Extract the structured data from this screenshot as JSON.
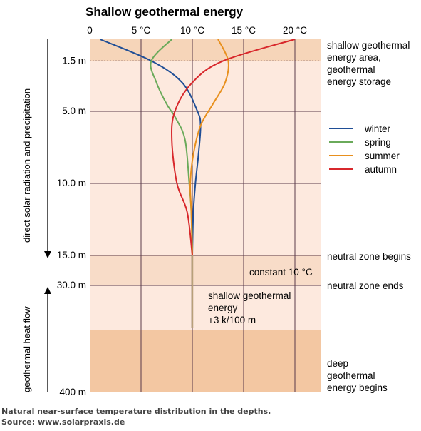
{
  "chart_data": {
    "type": "line",
    "title": "Shallow geothermal energy",
    "x_ticks": [
      "0",
      "5 °C",
      "10 °C",
      "15 °C",
      "20 °C"
    ],
    "x_tick_values": [
      0,
      5,
      10,
      15,
      20
    ],
    "xlim": [
      0,
      22.5
    ],
    "y_ticks": [
      "1.5 m",
      "5.0 m",
      "10.0 m",
      "15.0 m",
      "30.0 m",
      "400 m"
    ],
    "y_axis_note": "depth axis is not linear; 0–15 m upper section, then 15 m, 30 m and 400 m",
    "axis_side_labels": {
      "upper": "direct solar radiation and precipitation",
      "lower": "geothermal heat flow"
    },
    "legend": [
      {
        "name": "winter",
        "color": "#1f4e96"
      },
      {
        "name": "spring",
        "color": "#6aaa5a"
      },
      {
        "name": "summer",
        "color": "#e8901e"
      },
      {
        "name": "autumn",
        "color": "#d8282c"
      }
    ],
    "series": [
      {
        "name": "winter",
        "depth_m": [
          0,
          1.5,
          3,
          5,
          6,
          8,
          10,
          12,
          15
        ],
        "temp_c": [
          1,
          6,
          9,
          10.5,
          10.8,
          10.6,
          10.3,
          10.1,
          10
        ]
      },
      {
        "name": "spring",
        "depth_m": [
          0,
          1.5,
          3,
          4.5,
          5.5,
          7,
          10,
          12,
          15
        ],
        "temp_c": [
          8,
          6,
          6.5,
          7.5,
          8.4,
          9.3,
          9.7,
          9.9,
          10
        ]
      },
      {
        "name": "summer",
        "depth_m": [
          0,
          1.5,
          3,
          4.5,
          6,
          8,
          10,
          12,
          15
        ],
        "temp_c": [
          12.5,
          13.5,
          13.2,
          12,
          10.8,
          10.1,
          9.8,
          9.9,
          10
        ]
      },
      {
        "name": "autumn",
        "depth_m": [
          0,
          1.5,
          3,
          5,
          7,
          10,
          12,
          15
        ],
        "temp_c": [
          20,
          13,
          10,
          8.3,
          8,
          8.5,
          9.5,
          10
        ]
      }
    ],
    "constant_temp_c": 10,
    "constant_depth_m": [
      15,
      30
    ],
    "shallow_gradient_note": "+3 k/100 m",
    "zones": [
      {
        "name": "shallow geothermal energy area, geothermal energy storage"
      },
      {
        "name": "neutral zone"
      },
      {
        "name": "deep geothermal energy"
      }
    ]
  },
  "labels": {
    "zone_top": [
      "shallow geothermal",
      "energy area,",
      "geothermal",
      "energy storage"
    ],
    "neutral_begins": "neutral zone begins",
    "neutral_ends": "neutral zone ends",
    "constant": "constant 10 °C",
    "shallow_note": [
      "shallow geothermal",
      "energy",
      "+3 k/100 m"
    ],
    "deep": [
      "deep",
      "geothermal",
      "energy begins"
    ]
  },
  "caption": {
    "line1": "Natural near-surface temperature distribution in the depths.",
    "line2": "Source: www.solarpraxis.de"
  },
  "colors": {
    "bg_light": "#fde9de",
    "bg_dark": "#f3c7a2",
    "bg_neutral": "#f8dcc8",
    "grid": "#5a3a4a"
  }
}
